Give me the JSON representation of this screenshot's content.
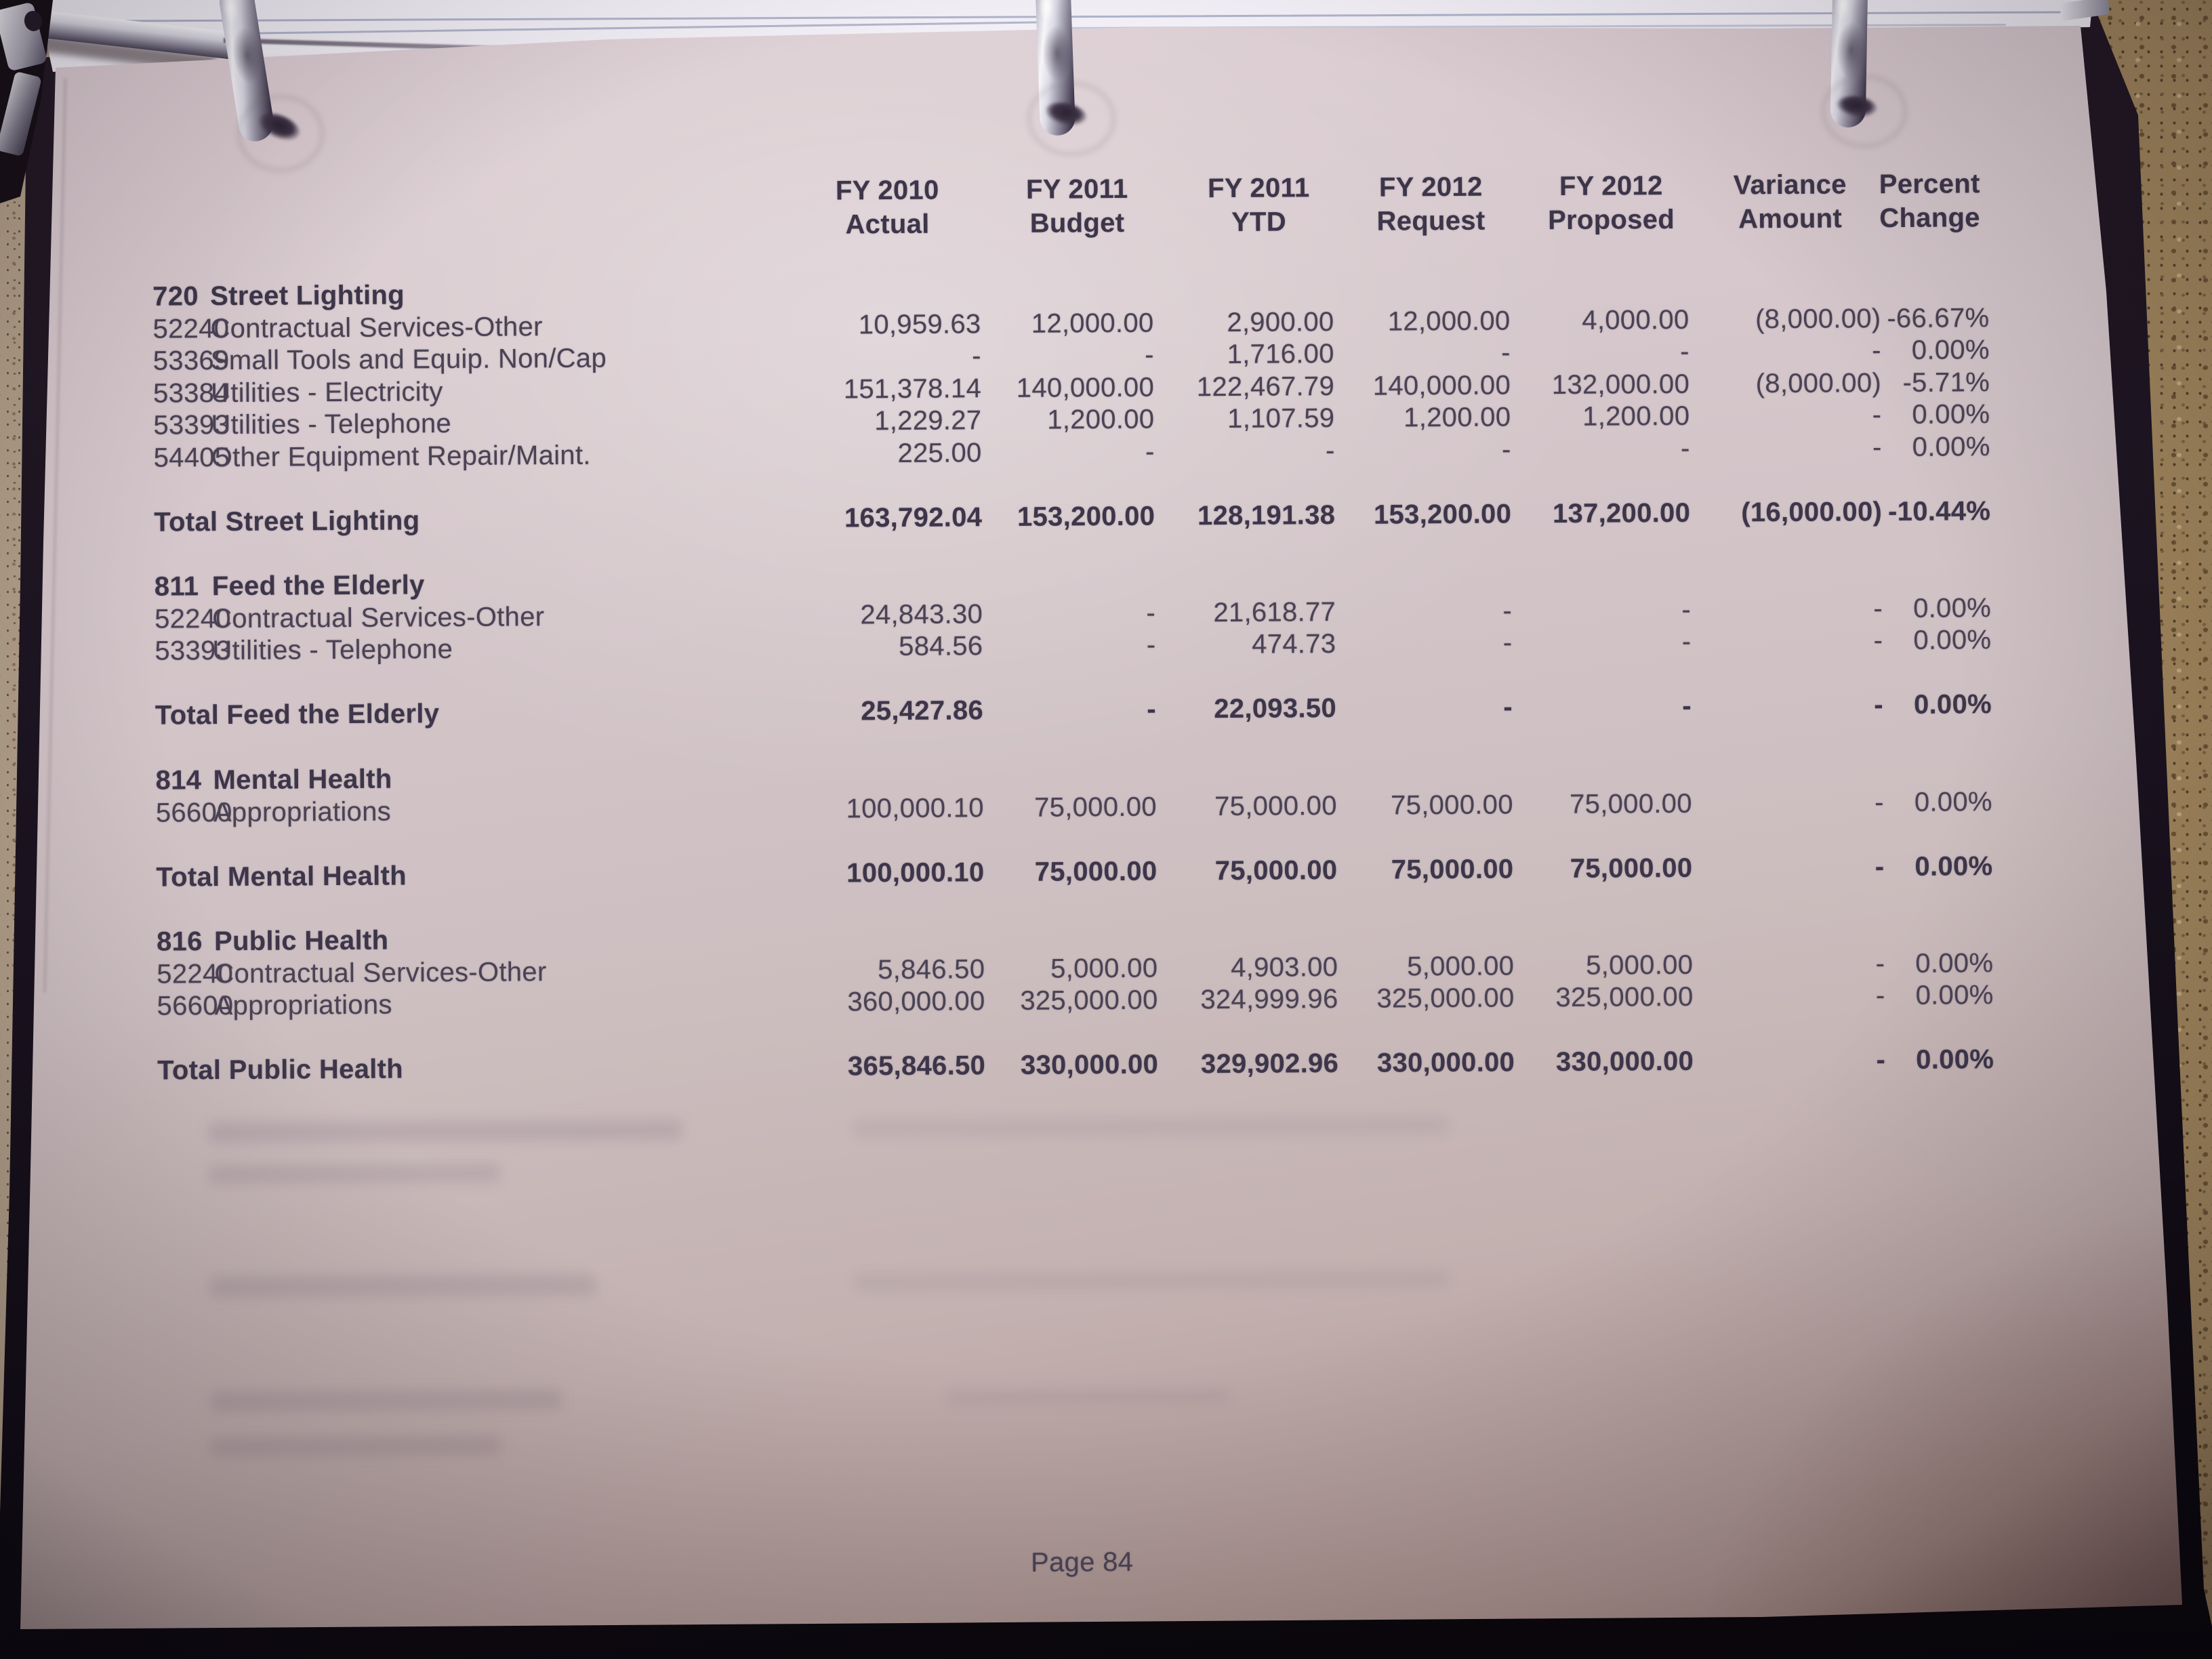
{
  "document": {
    "columns": [
      {
        "line1": "FY 2010",
        "line2": "Actual"
      },
      {
        "line1": "FY 2011",
        "line2": "Budget"
      },
      {
        "line1": "FY 2011",
        "line2": "YTD"
      },
      {
        "line1": "FY 2012",
        "line2": "Request"
      },
      {
        "line1": "FY 2012",
        "line2": "Proposed"
      },
      {
        "line1": "Variance",
        "line2": "Amount"
      },
      {
        "line1": "Percent",
        "line2": "Change"
      }
    ],
    "sections": [
      {
        "code": "720",
        "title": "Street Lighting",
        "rows": [
          {
            "code": "52240",
            "label": "Contractual Services-Other",
            "values": [
              "10,959.63",
              "12,000.00",
              "2,900.00",
              "12,000.00",
              "4,000.00",
              "(8,000.00)",
              "-66.67%"
            ]
          },
          {
            "code": "53369",
            "label": "Small Tools and Equip. Non/Cap",
            "values": [
              "-",
              "-",
              "1,716.00",
              "-",
              "-",
              "-",
              "0.00%"
            ]
          },
          {
            "code": "53384",
            "label": "Utilities - Electricity",
            "values": [
              "151,378.14",
              "140,000.00",
              "122,467.79",
              "140,000.00",
              "132,000.00",
              "(8,000.00)",
              "-5.71%"
            ]
          },
          {
            "code": "53393",
            "label": "Utilities - Telephone",
            "values": [
              "1,229.27",
              "1,200.00",
              "1,107.59",
              "1,200.00",
              "1,200.00",
              "-",
              "0.00%"
            ]
          },
          {
            "code": "54405",
            "label": "Other Equipment Repair/Maint.",
            "values": [
              "225.00",
              "-",
              "-",
              "-",
              "-",
              "-",
              "0.00%"
            ]
          }
        ],
        "total": {
          "label": "Total Street Lighting",
          "values": [
            "163,792.04",
            "153,200.00",
            "128,191.38",
            "153,200.00",
            "137,200.00",
            "(16,000.00)",
            "-10.44%"
          ]
        }
      },
      {
        "code": "811",
        "title": "Feed the Elderly",
        "rows": [
          {
            "code": "52240",
            "label": "Contractual Services-Other",
            "values": [
              "24,843.30",
              "-",
              "21,618.77",
              "-",
              "-",
              "-",
              "0.00%"
            ]
          },
          {
            "code": "53393",
            "label": "Utilities - Telephone",
            "values": [
              "584.56",
              "-",
              "474.73",
              "-",
              "-",
              "-",
              "0.00%"
            ]
          }
        ],
        "total": {
          "label": "Total Feed the Elderly",
          "values": [
            "25,427.86",
            "-",
            "22,093.50",
            "-",
            "-",
            "-",
            "0.00%"
          ]
        }
      },
      {
        "code": "814",
        "title": "Mental Health",
        "rows": [
          {
            "code": "56600",
            "label": "Appropriations",
            "values": [
              "100,000.10",
              "75,000.00",
              "75,000.00",
              "75,000.00",
              "75,000.00",
              "-",
              "0.00%"
            ]
          }
        ],
        "total": {
          "label": "Total Mental Health",
          "values": [
            "100,000.10",
            "75,000.00",
            "75,000.00",
            "75,000.00",
            "75,000.00",
            "-",
            "0.00%"
          ]
        }
      },
      {
        "code": "816",
        "title": "Public Health",
        "rows": [
          {
            "code": "52240",
            "label": "Contractual Services-Other",
            "values": [
              "5,846.50",
              "5,000.00",
              "4,903.00",
              "5,000.00",
              "5,000.00",
              "-",
              "0.00%"
            ]
          },
          {
            "code": "56600",
            "label": "Appropriations",
            "values": [
              "360,000.00",
              "325,000.00",
              "324,999.96",
              "325,000.00",
              "325,000.00",
              "-",
              "0.00%"
            ]
          }
        ],
        "total": {
          "label": "Total Public Health",
          "values": [
            "365,846.50",
            "330,000.00",
            "329,902.96",
            "330,000.00",
            "330,000.00",
            "-",
            "0.00%"
          ]
        }
      }
    ],
    "footer": {
      "page_label": "Page 84"
    }
  },
  "scene": {
    "colors": {
      "ink": "#4a4254",
      "ink_bold": "#3d364a",
      "paper_tint": "#d5c7cb",
      "binder_cover": "#19121e",
      "countertop_left": "#b2a089",
      "countertop_right": "#a3885e",
      "ring_silver": "#dcdbe5"
    },
    "binder_ring_count": 3
  }
}
